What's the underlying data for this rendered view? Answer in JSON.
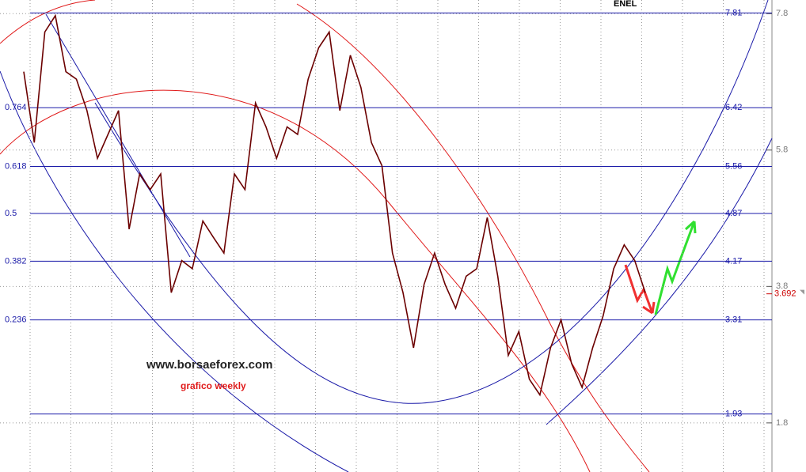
{
  "chart_data": {
    "type": "line",
    "title": "ENEL",
    "watermark": "www.borsaeforex.com",
    "subtitle": "grafico weekly",
    "values": [
      6.95,
      5.91,
      7.53,
      7.77,
      6.95,
      6.84,
      6.38,
      5.68,
      6.03,
      6.38,
      4.64,
      5.45,
      5.22,
      5.45,
      3.71,
      4.18,
      4.06,
      4.76,
      4.52,
      4.29,
      5.45,
      5.22,
      6.49,
      6.14,
      5.68,
      6.14,
      6.03,
      6.84,
      7.3,
      7.53,
      6.38,
      7.19,
      6.72,
      5.91,
      5.57,
      4.29,
      3.71,
      2.9,
      3.83,
      4.29,
      3.83,
      3.48,
      3.95,
      4.06,
      4.81,
      3.95,
      2.79,
      3.14,
      2.44,
      2.21,
      2.9,
      3.31,
      2.67,
      2.32,
      2.9,
      3.37,
      4.06,
      4.41,
      4.18,
      3.71
    ],
    "color": "#6b0000",
    "ylim": [
      1.08,
      8.0
    ],
    "yticks": [
      7.8,
      5.8,
      3.8,
      1.8
    ],
    "grid": true,
    "last_price": 3.692,
    "levels": [
      {
        "price": 7.81
      },
      {
        "ratio": 0.764,
        "price": 6.42
      },
      {
        "ratio": 0.618,
        "price": 5.56
      },
      {
        "ratio": 0.5,
        "price": 4.87
      },
      {
        "ratio": 0.382,
        "price": 4.17
      },
      {
        "ratio": 0.236,
        "price": 3.31
      },
      {
        "price": 1.93
      }
    ]
  }
}
